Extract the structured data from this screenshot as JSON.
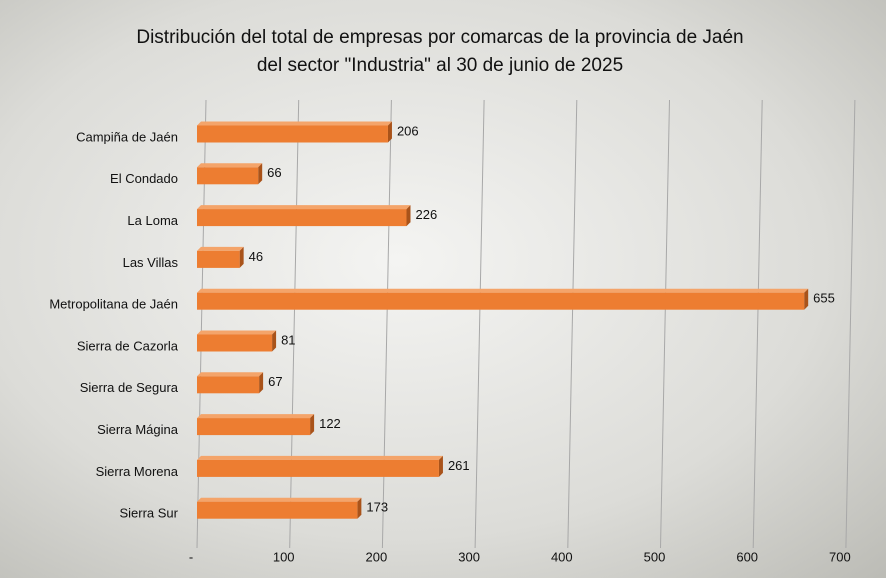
{
  "chart_data": {
    "type": "bar",
    "orientation": "horizontal",
    "title": [
      "Distribución del total de empresas por comarcas de la provincia de Jaén",
      "del sector \"Industria\" al 30 de junio de 2025"
    ],
    "categories": [
      "Campiña de Jaén",
      "El Condado",
      "La Loma",
      "Las Villas",
      "Metropolitana de Jaén",
      "Sierra de Cazorla",
      "Sierra de Segura",
      "Sierra Mágina",
      "Sierra Morena",
      "Sierra Sur"
    ],
    "values": [
      206,
      66,
      226,
      46,
      655,
      81,
      67,
      122,
      261,
      173
    ],
    "color": "#ed7d31",
    "xlim": [
      0,
      700
    ],
    "xticks": [
      {
        "value": 0,
        "label": "-"
      },
      100,
      200,
      300,
      400,
      500,
      600,
      700
    ],
    "grid": true
  }
}
